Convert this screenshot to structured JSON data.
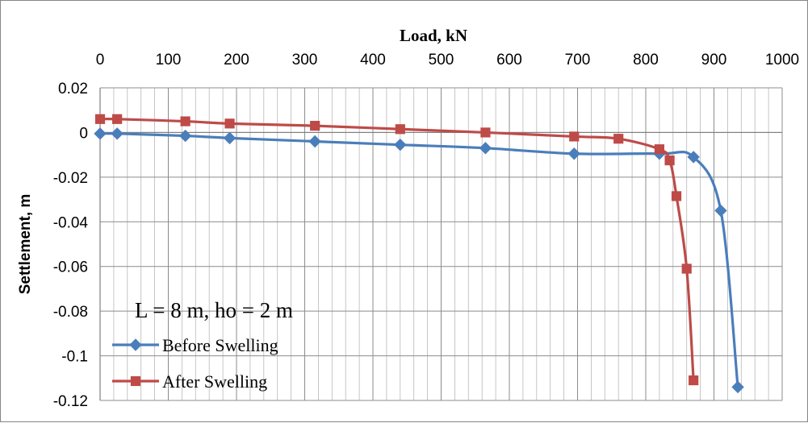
{
  "chart_data": {
    "type": "line",
    "xlabel": "Load, kN",
    "ylabel": "Settlement, m",
    "xlim": [
      0,
      1000
    ],
    "ylim": [
      -0.12,
      0.02
    ],
    "x_ticks": [
      0,
      100,
      200,
      300,
      400,
      500,
      600,
      700,
      800,
      900,
      1000
    ],
    "x_tick_labels": [
      "0",
      "100",
      "200",
      "300",
      "400",
      "500",
      "600",
      "700",
      "800",
      "900",
      "1000"
    ],
    "y_ticks": [
      0.02,
      0,
      -0.02,
      -0.04,
      -0.06,
      -0.08,
      -0.1,
      -0.12
    ],
    "y_tick_labels": [
      "0.02",
      "0",
      "-0.02",
      "-0.04",
      "-0.06",
      "-0.08",
      "-0.1",
      "-0.12"
    ],
    "x_axis_position": "top",
    "grid": true,
    "legend_position": "bottom-left",
    "annotation": "L = 8 m, ho = 2 m",
    "series": [
      {
        "name": "Before Swelling",
        "color": "#4a7ebb",
        "marker": "diamond",
        "x": [
          0,
          25,
          125,
          190,
          315,
          440,
          565,
          695,
          820,
          870,
          910,
          935
        ],
        "y": [
          -0.0005,
          -0.0005,
          -0.0015,
          -0.0025,
          -0.004,
          -0.0055,
          -0.007,
          -0.0095,
          -0.0095,
          -0.011,
          -0.035,
          -0.114
        ]
      },
      {
        "name": "After Swelling",
        "color": "#be4b48",
        "marker": "square",
        "x": [
          0,
          25,
          125,
          190,
          315,
          440,
          565,
          695,
          760,
          820,
          835,
          845,
          860,
          870
        ],
        "y": [
          0.006,
          0.006,
          0.005,
          0.004,
          0.003,
          0.0015,
          0,
          -0.0018,
          -0.0028,
          -0.0075,
          -0.0125,
          -0.0285,
          -0.061,
          -0.111
        ]
      }
    ]
  }
}
